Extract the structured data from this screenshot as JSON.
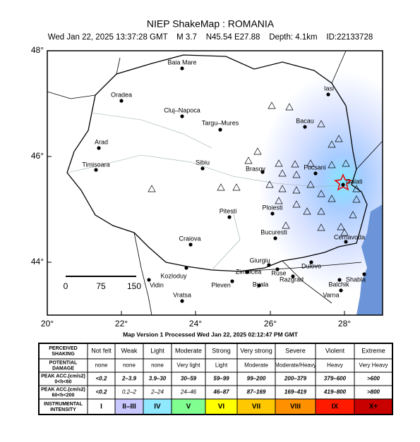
{
  "header": {
    "title": "NIEP ShakeMap : ROMANIA",
    "subtitle": "Wed Jan 22, 2025 13:37:28 GMT    M 3.7    N45.54 E27.88    Depth: 4.1km    ID:22133728"
  },
  "map": {
    "lat_labels": [
      "48°",
      "46°",
      "44°"
    ],
    "lon_labels": [
      "20°",
      "22°",
      "24°",
      "26°",
      "28°"
    ],
    "scale_labels": [
      "0",
      "75",
      "150"
    ],
    "cities": [
      "Baia Mare",
      "Oradea",
      "Cluj–Napoca",
      "Targu–Mures",
      "Arad",
      "Timisoara",
      "Sibiu",
      "Brasov",
      "Focsani",
      "Iasi",
      "Bacau",
      "Galati",
      "Ploiesti",
      "Pitesti",
      "Bucuresti",
      "Cernavoda",
      "Craiova",
      "Giurgiu",
      "Zimnicea",
      "Ruse",
      "Dulovo",
      "Kozloduy",
      "Vidin",
      "Pleven",
      "Byala",
      "Razgrad",
      "Balchik",
      "Shabla",
      "Varna",
      "Vratsa"
    ]
  },
  "footer": "Map Version 1 Processed Wed Jan 22, 2025 02:12:47 PM GMT",
  "legend": {
    "row_labels": [
      [
        "PERCEIVED",
        "SHAKING"
      ],
      [
        "POTENTIAL",
        "DAMAGE"
      ],
      [
        "PEAK ACC.(cm/s2)",
        "0<h<60"
      ],
      [
        "PEAK ACC.(cm/s2)",
        "60<h<200"
      ],
      [
        "INSTRUMENTAL",
        "INTENSITY"
      ]
    ],
    "rows": [
      [
        "Not felt",
        "Weak",
        "Light",
        "Moderate",
        "Strong",
        "Very strong",
        "Severe",
        "Violent",
        "Extreme"
      ],
      [
        "none",
        "none",
        "none",
        "Very light",
        "Light",
        "Moderate",
        "Moderate/Heavy",
        "Heavy",
        "Very Heavy"
      ],
      [
        "<0.2",
        "2–3.9",
        "3.9–30",
        "30–59",
        "59–99",
        "99–200",
        "200–379",
        "379–600",
        ">600"
      ],
      [
        "<0.2",
        "0.2–2",
        "2–24",
        "24–46",
        "46–87",
        "87–169",
        "169–419",
        "419–800",
        ">800"
      ],
      [
        "I",
        "II–III",
        "IV",
        "V",
        "VI",
        "VII",
        "VIII",
        "IX",
        "X+"
      ]
    ],
    "colors": [
      "#ffffff",
      "#c8c8ff",
      "#90e8ff",
      "#80ff90",
      "#ffff00",
      "#ffc800",
      "#ff9100",
      "#ff1a00",
      "#c80000"
    ]
  }
}
